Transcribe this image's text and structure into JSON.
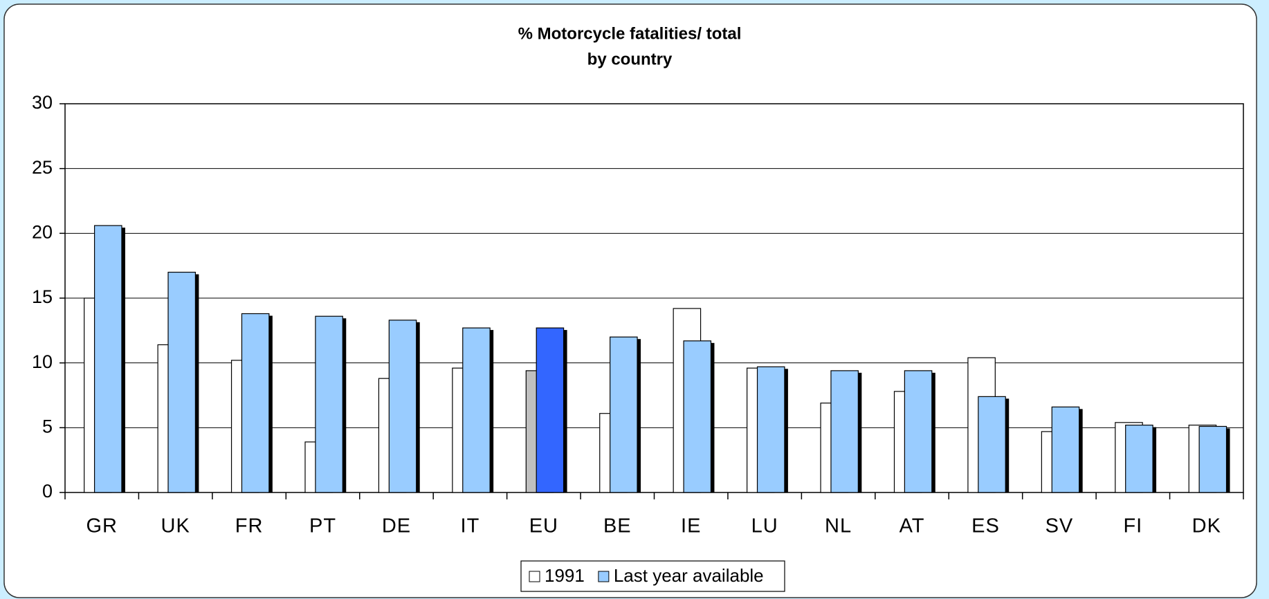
{
  "chart_data": {
    "type": "bar",
    "title": "% Motorcycle  fatalities/ total",
    "subtitle": "by country",
    "categories": [
      "GR",
      "UK",
      "FR",
      "PT",
      "DE",
      "IT",
      "EU",
      "BE",
      "IE",
      "LU",
      "NL",
      "AT",
      "ES",
      "SV",
      "FI",
      "DK"
    ],
    "series": [
      {
        "name": "1991",
        "color": "#ffffff",
        "values": [
          15,
          11.4,
          10.2,
          3.9,
          8.8,
          9.6,
          9.4,
          6.1,
          14.2,
          9.6,
          6.9,
          7.8,
          10.4,
          4.7,
          5.4,
          5.2
        ]
      },
      {
        "name": "Last year available",
        "color": "#99ccff",
        "values": [
          20.6,
          17.0,
          13.8,
          13.6,
          13.3,
          12.7,
          12.7,
          12.0,
          11.7,
          9.7,
          9.4,
          9.4,
          7.4,
          6.6,
          5.2,
          5.1
        ]
      }
    ],
    "highlight": {
      "category": "EU",
      "colors": [
        "#c0c0c0",
        "#3366ff"
      ]
    },
    "ylim": [
      0,
      30
    ],
    "yticks": [
      0,
      5,
      10,
      15,
      20,
      25,
      30
    ],
    "grid": true,
    "legend": "bottom"
  }
}
